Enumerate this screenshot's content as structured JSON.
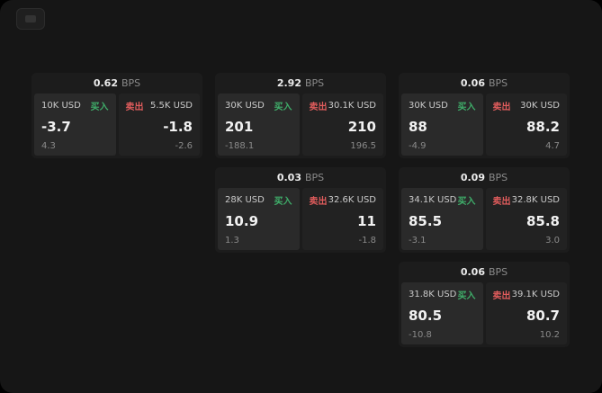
{
  "app": {
    "colors": {
      "background": "#161616",
      "card_bg": "#1c1c1c",
      "buy_panel_bg": "#2a2a2a",
      "sell_panel_bg": "#222222",
      "buy_accent": "#3fae6a",
      "sell_accent": "#e05c5c"
    },
    "logo": ""
  },
  "labels": {
    "bps_unit": "BPS",
    "buy_action": "买入",
    "sell_action": "卖出"
  },
  "cards": [
    {
      "bps_value": "0.62",
      "bps_unit": "BPS",
      "buy": {
        "size": "10K USD",
        "action": "买入",
        "price": "-3.7",
        "delta": "4.3"
      },
      "sell": {
        "size": "5.5K USD",
        "action": "卖出",
        "price": "-1.8",
        "delta": "-2.6"
      }
    },
    {
      "bps_value": "2.92",
      "bps_unit": "BPS",
      "buy": {
        "size": "30K USD",
        "action": "买入",
        "price": "201",
        "delta": "-188.1"
      },
      "sell": {
        "size": "30.1K USD",
        "action": "卖出",
        "price": "210",
        "delta": "196.5"
      }
    },
    {
      "bps_value": "0.06",
      "bps_unit": "BPS",
      "buy": {
        "size": "30K USD",
        "action": "买入",
        "price": "88",
        "delta": "-4.9"
      },
      "sell": {
        "size": "30K USD",
        "action": "卖出",
        "price": "88.2",
        "delta": "4.7"
      }
    },
    {
      "bps_value": "0.03",
      "bps_unit": "BPS",
      "buy": {
        "size": "28K USD",
        "action": "买入",
        "price": "10.9",
        "delta": "1.3"
      },
      "sell": {
        "size": "32.6K USD",
        "action": "卖出",
        "price": "11",
        "delta": "-1.8"
      }
    },
    {
      "bps_value": "0.09",
      "bps_unit": "BPS",
      "buy": {
        "size": "34.1K USD",
        "action": "买入",
        "price": "85.5",
        "delta": "-3.1"
      },
      "sell": {
        "size": "32.8K USD",
        "action": "卖出",
        "price": "85.8",
        "delta": "3.0"
      }
    },
    {
      "bps_value": "0.06",
      "bps_unit": "BPS",
      "buy": {
        "size": "31.8K USD",
        "action": "买入",
        "price": "80.5",
        "delta": "-10.8"
      },
      "sell": {
        "size": "39.1K USD",
        "action": "卖出",
        "price": "80.7",
        "delta": "10.2"
      }
    }
  ]
}
